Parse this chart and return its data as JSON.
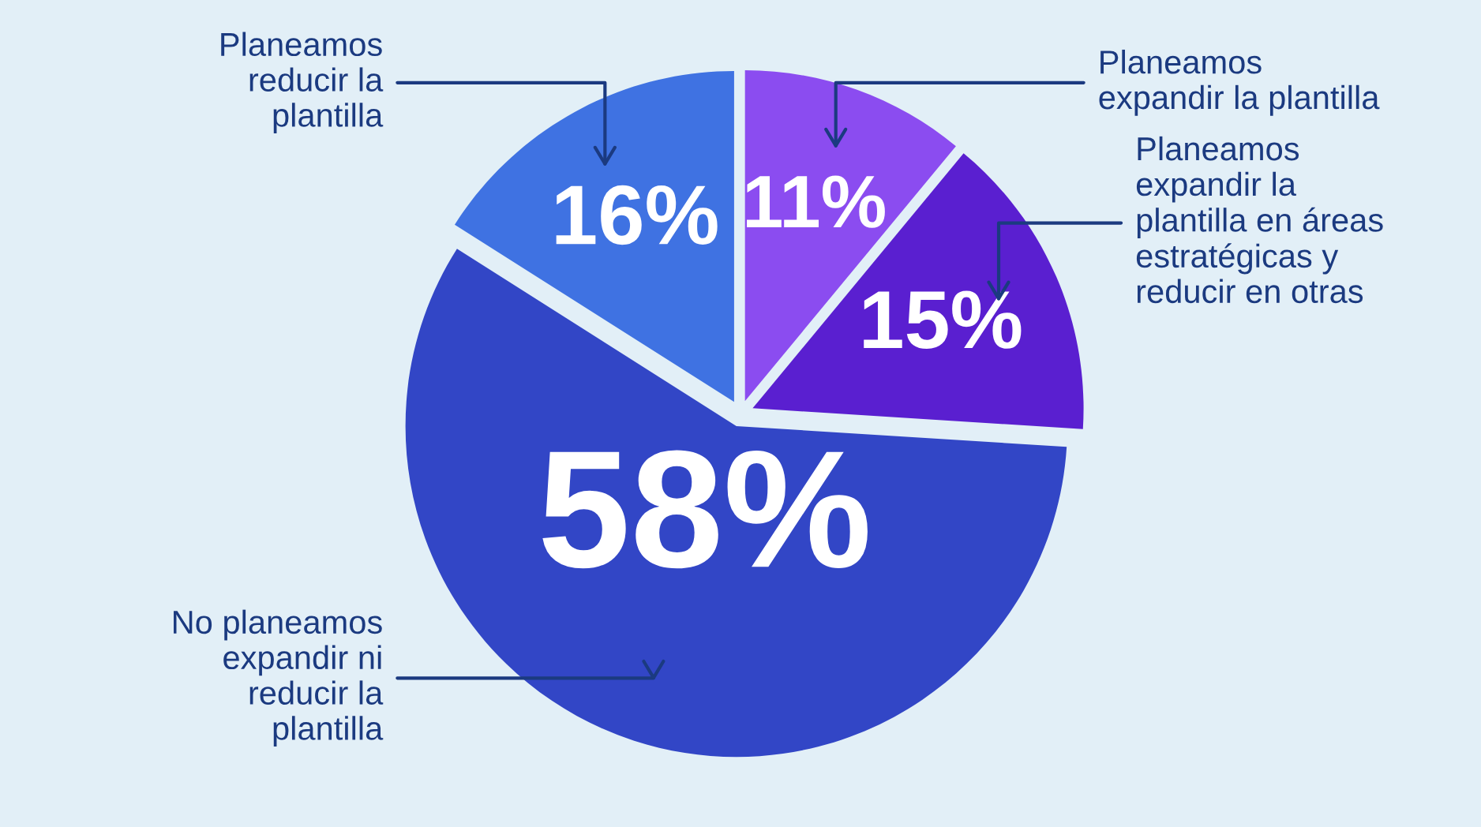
{
  "chart_data": {
    "type": "pie",
    "categories": [
      "Planeamos\nexpandir la plantilla",
      "Planeamos\nexpandir la\nplantilla en áreas\nestratégicas y\nreducir en otras",
      "No planeamos\nexpandir ni\nreducir la\nplantilla",
      "Planeamos\nreducir la\nplantilla"
    ],
    "values": [
      11,
      15,
      58,
      16
    ],
    "colors": [
      "#8b4cf0",
      "#5a1fd0",
      "#3246c6",
      "#3f72e2"
    ],
    "value_labels": [
      "11%",
      "15%",
      "58%",
      "16%"
    ]
  }
}
